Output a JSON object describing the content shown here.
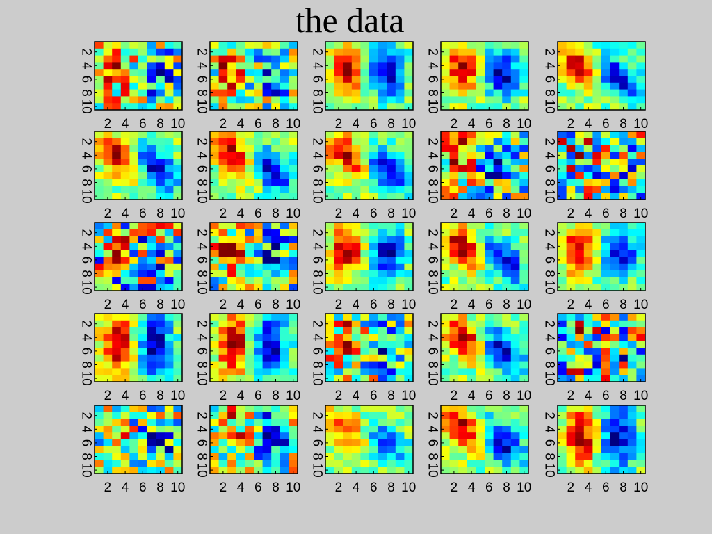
{
  "slide": {
    "title": "the data"
  },
  "chart_data": {
    "type": "heatmap",
    "grid": [
      5,
      5
    ],
    "colormap": "jet",
    "matrix_size": [
      10,
      10
    ],
    "x_ticks": [
      "2",
      "4",
      "6",
      "8",
      "10"
    ],
    "y_ticks": [
      "2",
      "4",
      "6",
      "8",
      "10"
    ],
    "panel_patterns": [
      "noisy-red-left",
      "two-lobe-noisy",
      "two-lobe",
      "two-lobe",
      "two-lobe-diagonal",
      "two-lobe-diagonal",
      "two-lobe-diagonal",
      "two-lobe-diagonal",
      "noisy-blue",
      "noisy",
      "noisy",
      "two-lobe-noisy",
      "two-lobe",
      "two-lobe-diagonal",
      "two-lobe",
      "two-lobe-vertical",
      "two-lobe-vertical",
      "two-lobe-noisy",
      "two-lobe-diagonal",
      "noisy",
      "noisy-diagonal",
      "two-lobe-noisy",
      "diagonal-weak",
      "two-lobe-diagonal",
      "two-lobe-vertical"
    ]
  }
}
